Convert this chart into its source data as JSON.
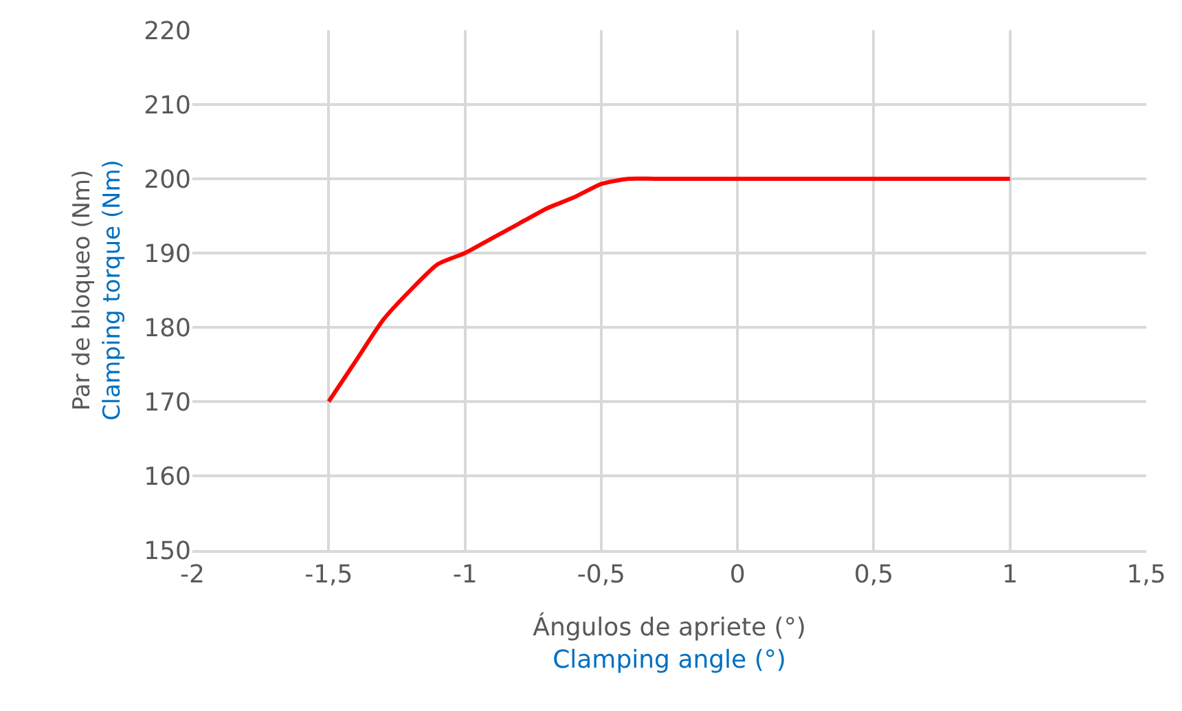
{
  "chart_data": {
    "type": "line",
    "xlabel": "Ángulos de apriete (°)\nClamping angle (°)",
    "ylabel": "Par de bloqueo (Nm)\nClamping torque (Nm)",
    "x": [
      -1.5,
      -1.4,
      -1.3,
      -1.2,
      -1.1,
      -1.0,
      -0.9,
      -0.8,
      -0.7,
      -0.6,
      -0.5,
      -0.4,
      -0.3,
      0,
      0.5,
      1.0
    ],
    "series": [
      {
        "color": "#ff0000",
        "values": [
          170,
          175.5,
          181,
          185,
          188.5,
          190,
          192,
          194,
          196,
          197.5,
          199.3,
          200,
          200,
          200,
          200,
          200
        ]
      }
    ],
    "xlim": [
      -2,
      1.5
    ],
    "xticks": [
      -2,
      {
        "value": -1.5,
        "label": "-1,5"
      },
      -1,
      {
        "value": -0.5,
        "label": "-0,5"
      },
      0,
      {
        "value": 0.5,
        "label": "0,5"
      },
      1,
      {
        "value": 1.5,
        "label": "1,5"
      }
    ],
    "ylim": [
      150,
      220
    ],
    "yticks": [
      150,
      160,
      170,
      180,
      190,
      200,
      210,
      220
    ],
    "grid": true,
    "legend": false,
    "marker": "none",
    "line_style": "solid"
  }
}
